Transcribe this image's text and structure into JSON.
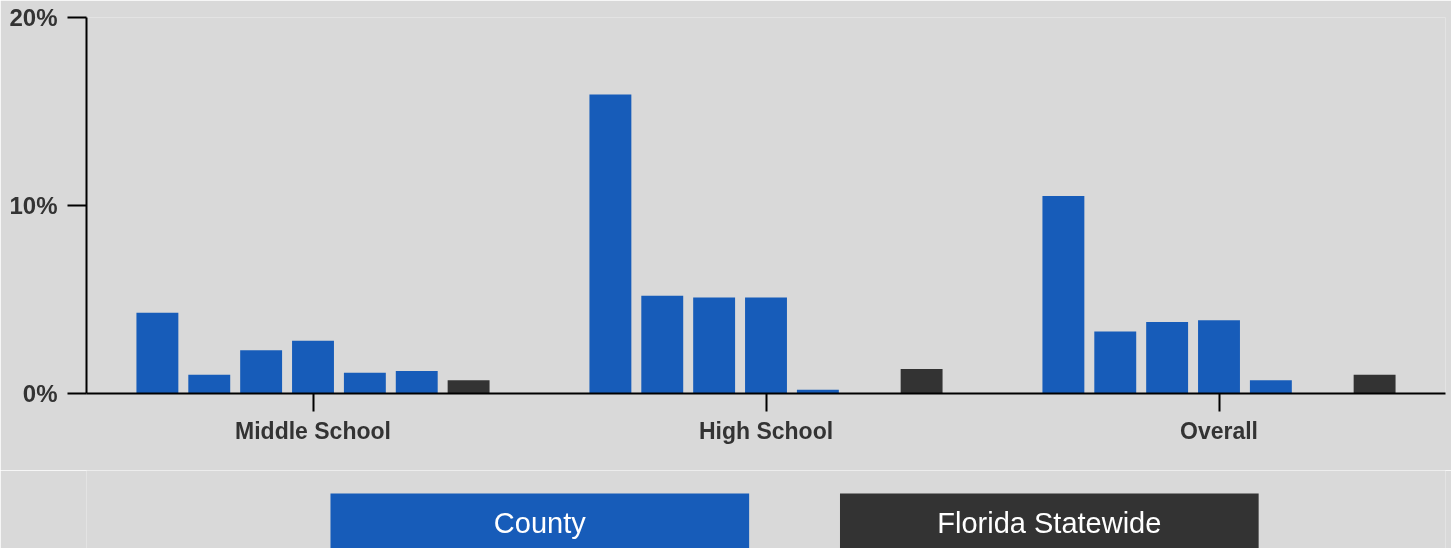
{
  "chart_data": {
    "type": "bar",
    "categories": [
      "Middle School",
      "High School",
      "Overall"
    ],
    "series": [
      {
        "name": "County",
        "color": "#175cb9",
        "values": [
          4.3,
          15.9,
          10.5
        ]
      },
      {
        "color": "#175cb9",
        "values": [
          1.0,
          5.2,
          3.3
        ]
      },
      {
        "color": "#175cb9",
        "values": [
          2.3,
          5.1,
          3.8
        ]
      },
      {
        "color": "#175cb9",
        "values": [
          2.8,
          5.1,
          3.9
        ]
      },
      {
        "color": "#175cb9",
        "values": [
          1.1,
          0.2,
          0.7
        ]
      },
      {
        "color": "#175cb9",
        "values": [
          1.2,
          null,
          null
        ]
      },
      {
        "name": "Florida Statewide",
        "color": "#333333",
        "values": [
          0.7,
          1.3,
          1.0
        ]
      }
    ],
    "ylim": [
      0,
      20
    ],
    "yticks": [
      {
        "value": 0,
        "label": "0%"
      },
      {
        "value": 10,
        "label": "10%"
      },
      {
        "value": 20,
        "label": "20%"
      }
    ],
    "grid": false,
    "legend": "bottom"
  }
}
